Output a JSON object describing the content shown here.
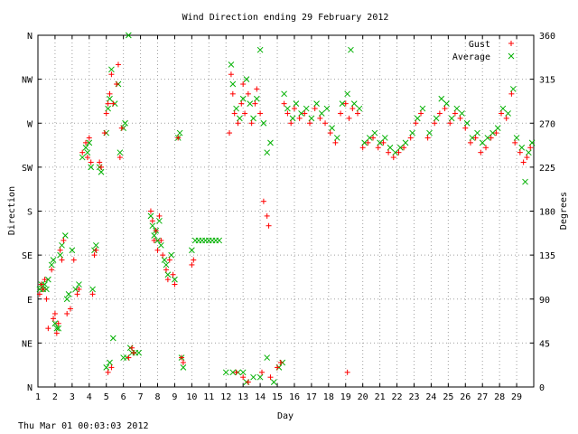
{
  "chart_data": {
    "type": "scatter",
    "title": "Wind Direction ending 29 February 2012",
    "xlabel": "Day",
    "ylabel": "Direction",
    "y2label": "Degrees",
    "footer": "Thu Mar 01 00:03:03 2012",
    "xlim": [
      1,
      30
    ],
    "ylim": [
      0,
      360
    ],
    "x_ticks": [
      "1",
      "2",
      "3",
      "4",
      "5",
      "6",
      "7",
      "8",
      "9",
      "10",
      "11",
      "12",
      "13",
      "14",
      "15",
      "16",
      "17",
      "18",
      "19",
      "20",
      "21",
      "22",
      "23",
      "24",
      "25",
      "26",
      "27",
      "28",
      "29"
    ],
    "y_left_ticks": [
      {
        "value": 0,
        "label": "N"
      },
      {
        "value": 45,
        "label": "NE"
      },
      {
        "value": 90,
        "label": "E"
      },
      {
        "value": 135,
        "label": "SE"
      },
      {
        "value": 180,
        "label": "S"
      },
      {
        "value": 225,
        "label": "SW"
      },
      {
        "value": 270,
        "label": "W"
      },
      {
        "value": 315,
        "label": "NW"
      },
      {
        "value": 360,
        "label": "N"
      }
    ],
    "y_right_ticks": [
      "0",
      "45",
      "90",
      "135",
      "180",
      "225",
      "270",
      "315",
      "360"
    ],
    "grid": true,
    "legend_position": "top-right",
    "series": [
      {
        "name": "Gust",
        "marker": "+",
        "color": "#ff0000",
        "points": [
          [
            1.1,
            95
          ],
          [
            1.2,
            105
          ],
          [
            1.3,
            100
          ],
          [
            1.4,
            110
          ],
          [
            1.5,
            90
          ],
          [
            1.6,
            60
          ],
          [
            1.8,
            120
          ],
          [
            1.9,
            70
          ],
          [
            2.0,
            75
          ],
          [
            2.1,
            55
          ],
          [
            2.2,
            65
          ],
          [
            2.3,
            140
          ],
          [
            2.4,
            130
          ],
          [
            2.5,
            150
          ],
          [
            2.7,
            75
          ],
          [
            2.9,
            80
          ],
          [
            3.1,
            130
          ],
          [
            3.3,
            95
          ],
          [
            3.4,
            100
          ],
          [
            3.6,
            240
          ],
          [
            3.8,
            250
          ],
          [
            3.9,
            235
          ],
          [
            4.0,
            255
          ],
          [
            4.1,
            230
          ],
          [
            4.2,
            95
          ],
          [
            4.3,
            135
          ],
          [
            4.4,
            140
          ],
          [
            4.6,
            230
          ],
          [
            4.7,
            225
          ],
          [
            4.9,
            260
          ],
          [
            5.0,
            280
          ],
          [
            5.1,
            290
          ],
          [
            5.2,
            300
          ],
          [
            5.3,
            320
          ],
          [
            5.4,
            290
          ],
          [
            5.6,
            310
          ],
          [
            5.7,
            330
          ],
          [
            5.8,
            235
          ],
          [
            5.9,
            265
          ],
          [
            5.1,
            15
          ],
          [
            5.3,
            20
          ],
          [
            6.3,
            30
          ],
          [
            6.5,
            40
          ],
          [
            6.6,
            35
          ],
          [
            7.6,
            180
          ],
          [
            7.7,
            170
          ],
          [
            7.8,
            150
          ],
          [
            7.9,
            160
          ],
          [
            8.0,
            140
          ],
          [
            8.1,
            175
          ],
          [
            8.2,
            150
          ],
          [
            8.3,
            135
          ],
          [
            8.5,
            120
          ],
          [
            8.6,
            110
          ],
          [
            8.7,
            130
          ],
          [
            8.9,
            115
          ],
          [
            9.0,
            105
          ],
          [
            9.2,
            255
          ],
          [
            9.4,
            30
          ],
          [
            9.5,
            25
          ],
          [
            10.0,
            125
          ],
          [
            10.1,
            130
          ],
          [
            12.2,
            260
          ],
          [
            12.3,
            320
          ],
          [
            12.4,
            300
          ],
          [
            12.5,
            280
          ],
          [
            12.7,
            270
          ],
          [
            12.9,
            290
          ],
          [
            13.0,
            310
          ],
          [
            13.1,
            280
          ],
          [
            13.3,
            300
          ],
          [
            13.5,
            270
          ],
          [
            13.7,
            290
          ],
          [
            13.8,
            305
          ],
          [
            14.0,
            280
          ],
          [
            14.2,
            190
          ],
          [
            14.4,
            175
          ],
          [
            14.5,
            165
          ],
          [
            12.6,
            15
          ],
          [
            13.0,
            10
          ],
          [
            13.3,
            5
          ],
          [
            14.1,
            15
          ],
          [
            14.6,
            10
          ],
          [
            15.0,
            20
          ],
          [
            15.2,
            25
          ],
          [
            15.4,
            290
          ],
          [
            15.6,
            280
          ],
          [
            15.8,
            270
          ],
          [
            16.0,
            285
          ],
          [
            16.3,
            275
          ],
          [
            16.6,
            280
          ],
          [
            16.9,
            270
          ],
          [
            17.2,
            285
          ],
          [
            17.5,
            275
          ],
          [
            17.8,
            270
          ],
          [
            18.1,
            260
          ],
          [
            18.4,
            250
          ],
          [
            18.7,
            280
          ],
          [
            19.0,
            290
          ],
          [
            19.2,
            275
          ],
          [
            19.4,
            285
          ],
          [
            19.7,
            280
          ],
          [
            19.1,
            15
          ],
          [
            20.0,
            245
          ],
          [
            20.3,
            250
          ],
          [
            20.6,
            255
          ],
          [
            20.9,
            245
          ],
          [
            21.2,
            250
          ],
          [
            21.5,
            240
          ],
          [
            21.8,
            235
          ],
          [
            22.1,
            240
          ],
          [
            22.4,
            245
          ],
          [
            22.8,
            255
          ],
          [
            23.1,
            270
          ],
          [
            23.4,
            280
          ],
          [
            23.8,
            255
          ],
          [
            24.2,
            270
          ],
          [
            24.5,
            280
          ],
          [
            24.8,
            285
          ],
          [
            25.1,
            270
          ],
          [
            25.4,
            280
          ],
          [
            25.7,
            275
          ],
          [
            26.0,
            265
          ],
          [
            26.3,
            250
          ],
          [
            26.6,
            255
          ],
          [
            26.9,
            240
          ],
          [
            27.2,
            245
          ],
          [
            27.5,
            255
          ],
          [
            27.8,
            260
          ],
          [
            28.1,
            280
          ],
          [
            28.4,
            275
          ],
          [
            28.7,
            300
          ],
          [
            28.9,
            250
          ],
          [
            29.2,
            240
          ],
          [
            29.4,
            230
          ],
          [
            29.6,
            235
          ],
          [
            29.8,
            245
          ]
        ]
      },
      {
        "name": "Average",
        "marker": "x",
        "color": "#00b000",
        "points": [
          [
            1.1,
            100
          ],
          [
            1.2,
            105
          ],
          [
            1.3,
            100
          ],
          [
            1.4,
            105
          ],
          [
            1.5,
            100
          ],
          [
            1.6,
            110
          ],
          [
            1.8,
            125
          ],
          [
            1.9,
            130
          ],
          [
            2.0,
            65
          ],
          [
            2.1,
            60
          ],
          [
            2.2,
            60
          ],
          [
            2.3,
            135
          ],
          [
            2.4,
            145
          ],
          [
            2.6,
            155
          ],
          [
            2.7,
            90
          ],
          [
            2.8,
            95
          ],
          [
            3.0,
            140
          ],
          [
            3.2,
            100
          ],
          [
            3.4,
            105
          ],
          [
            3.6,
            235
          ],
          [
            3.8,
            245
          ],
          [
            3.9,
            240
          ],
          [
            4.0,
            250
          ],
          [
            4.1,
            225
          ],
          [
            4.2,
            100
          ],
          [
            4.3,
            140
          ],
          [
            4.4,
            145
          ],
          [
            4.6,
            225
          ],
          [
            4.7,
            220
          ],
          [
            5.0,
            260
          ],
          [
            5.1,
            285
          ],
          [
            5.2,
            295
          ],
          [
            5.3,
            325
          ],
          [
            5.5,
            290
          ],
          [
            5.7,
            310
          ],
          [
            5.8,
            240
          ],
          [
            6.0,
            265
          ],
          [
            6.1,
            270
          ],
          [
            6.3,
            360
          ],
          [
            5.0,
            20
          ],
          [
            5.2,
            25
          ],
          [
            5.4,
            50
          ],
          [
            6.0,
            30
          ],
          [
            6.2,
            30
          ],
          [
            6.4,
            40
          ],
          [
            6.5,
            35
          ],
          [
            6.7,
            35
          ],
          [
            6.9,
            35
          ],
          [
            7.6,
            175
          ],
          [
            7.7,
            165
          ],
          [
            7.8,
            155
          ],
          [
            7.9,
            160
          ],
          [
            8.0,
            150
          ],
          [
            8.1,
            170
          ],
          [
            8.2,
            145
          ],
          [
            8.4,
            130
          ],
          [
            8.5,
            125
          ],
          [
            8.6,
            115
          ],
          [
            8.8,
            135
          ],
          [
            9.0,
            110
          ],
          [
            9.2,
            255
          ],
          [
            9.3,
            260
          ],
          [
            9.4,
            30
          ],
          [
            9.5,
            20
          ],
          [
            10.0,
            140
          ],
          [
            10.2,
            150
          ],
          [
            10.4,
            150
          ],
          [
            10.6,
            150
          ],
          [
            10.8,
            150
          ],
          [
            11.0,
            150
          ],
          [
            11.2,
            150
          ],
          [
            11.4,
            150
          ],
          [
            11.6,
            150
          ],
          [
            12.0,
            15
          ],
          [
            12.3,
            330
          ],
          [
            12.4,
            310
          ],
          [
            12.6,
            285
          ],
          [
            12.8,
            275
          ],
          [
            13.0,
            295
          ],
          [
            13.2,
            315
          ],
          [
            13.4,
            290
          ],
          [
            13.6,
            275
          ],
          [
            13.8,
            295
          ],
          [
            14.0,
            345
          ],
          [
            14.2,
            270
          ],
          [
            14.4,
            240
          ],
          [
            14.6,
            250
          ],
          [
            12.4,
            15
          ],
          [
            12.7,
            15
          ],
          [
            13.0,
            15
          ],
          [
            13.2,
            5
          ],
          [
            13.6,
            10
          ],
          [
            14.0,
            10
          ],
          [
            14.4,
            30
          ],
          [
            14.8,
            5
          ],
          [
            15.1,
            20
          ],
          [
            15.3,
            25
          ],
          [
            15.4,
            300
          ],
          [
            15.6,
            285
          ],
          [
            15.9,
            275
          ],
          [
            16.1,
            290
          ],
          [
            16.4,
            280
          ],
          [
            16.7,
            285
          ],
          [
            17.0,
            275
          ],
          [
            17.3,
            290
          ],
          [
            17.6,
            280
          ],
          [
            17.9,
            285
          ],
          [
            18.2,
            265
          ],
          [
            18.5,
            255
          ],
          [
            18.8,
            290
          ],
          [
            19.1,
            300
          ],
          [
            19.3,
            345
          ],
          [
            19.5,
            290
          ],
          [
            19.8,
            285
          ],
          [
            20.1,
            250
          ],
          [
            20.4,
            255
          ],
          [
            20.7,
            260
          ],
          [
            21.0,
            250
          ],
          [
            21.3,
            255
          ],
          [
            21.6,
            245
          ],
          [
            21.9,
            240
          ],
          [
            22.2,
            245
          ],
          [
            22.5,
            250
          ],
          [
            22.9,
            260
          ],
          [
            23.2,
            275
          ],
          [
            23.5,
            285
          ],
          [
            23.9,
            260
          ],
          [
            24.3,
            275
          ],
          [
            24.6,
            295
          ],
          [
            24.9,
            290
          ],
          [
            25.2,
            275
          ],
          [
            25.5,
            285
          ],
          [
            25.8,
            280
          ],
          [
            26.1,
            270
          ],
          [
            26.4,
            255
          ],
          [
            26.7,
            260
          ],
          [
            27.0,
            250
          ],
          [
            27.3,
            255
          ],
          [
            27.6,
            260
          ],
          [
            27.9,
            265
          ],
          [
            28.2,
            285
          ],
          [
            28.5,
            280
          ],
          [
            28.8,
            305
          ],
          [
            29.0,
            255
          ],
          [
            29.3,
            245
          ],
          [
            29.5,
            210
          ],
          [
            29.7,
            240
          ],
          [
            29.9,
            250
          ]
        ]
      }
    ]
  }
}
